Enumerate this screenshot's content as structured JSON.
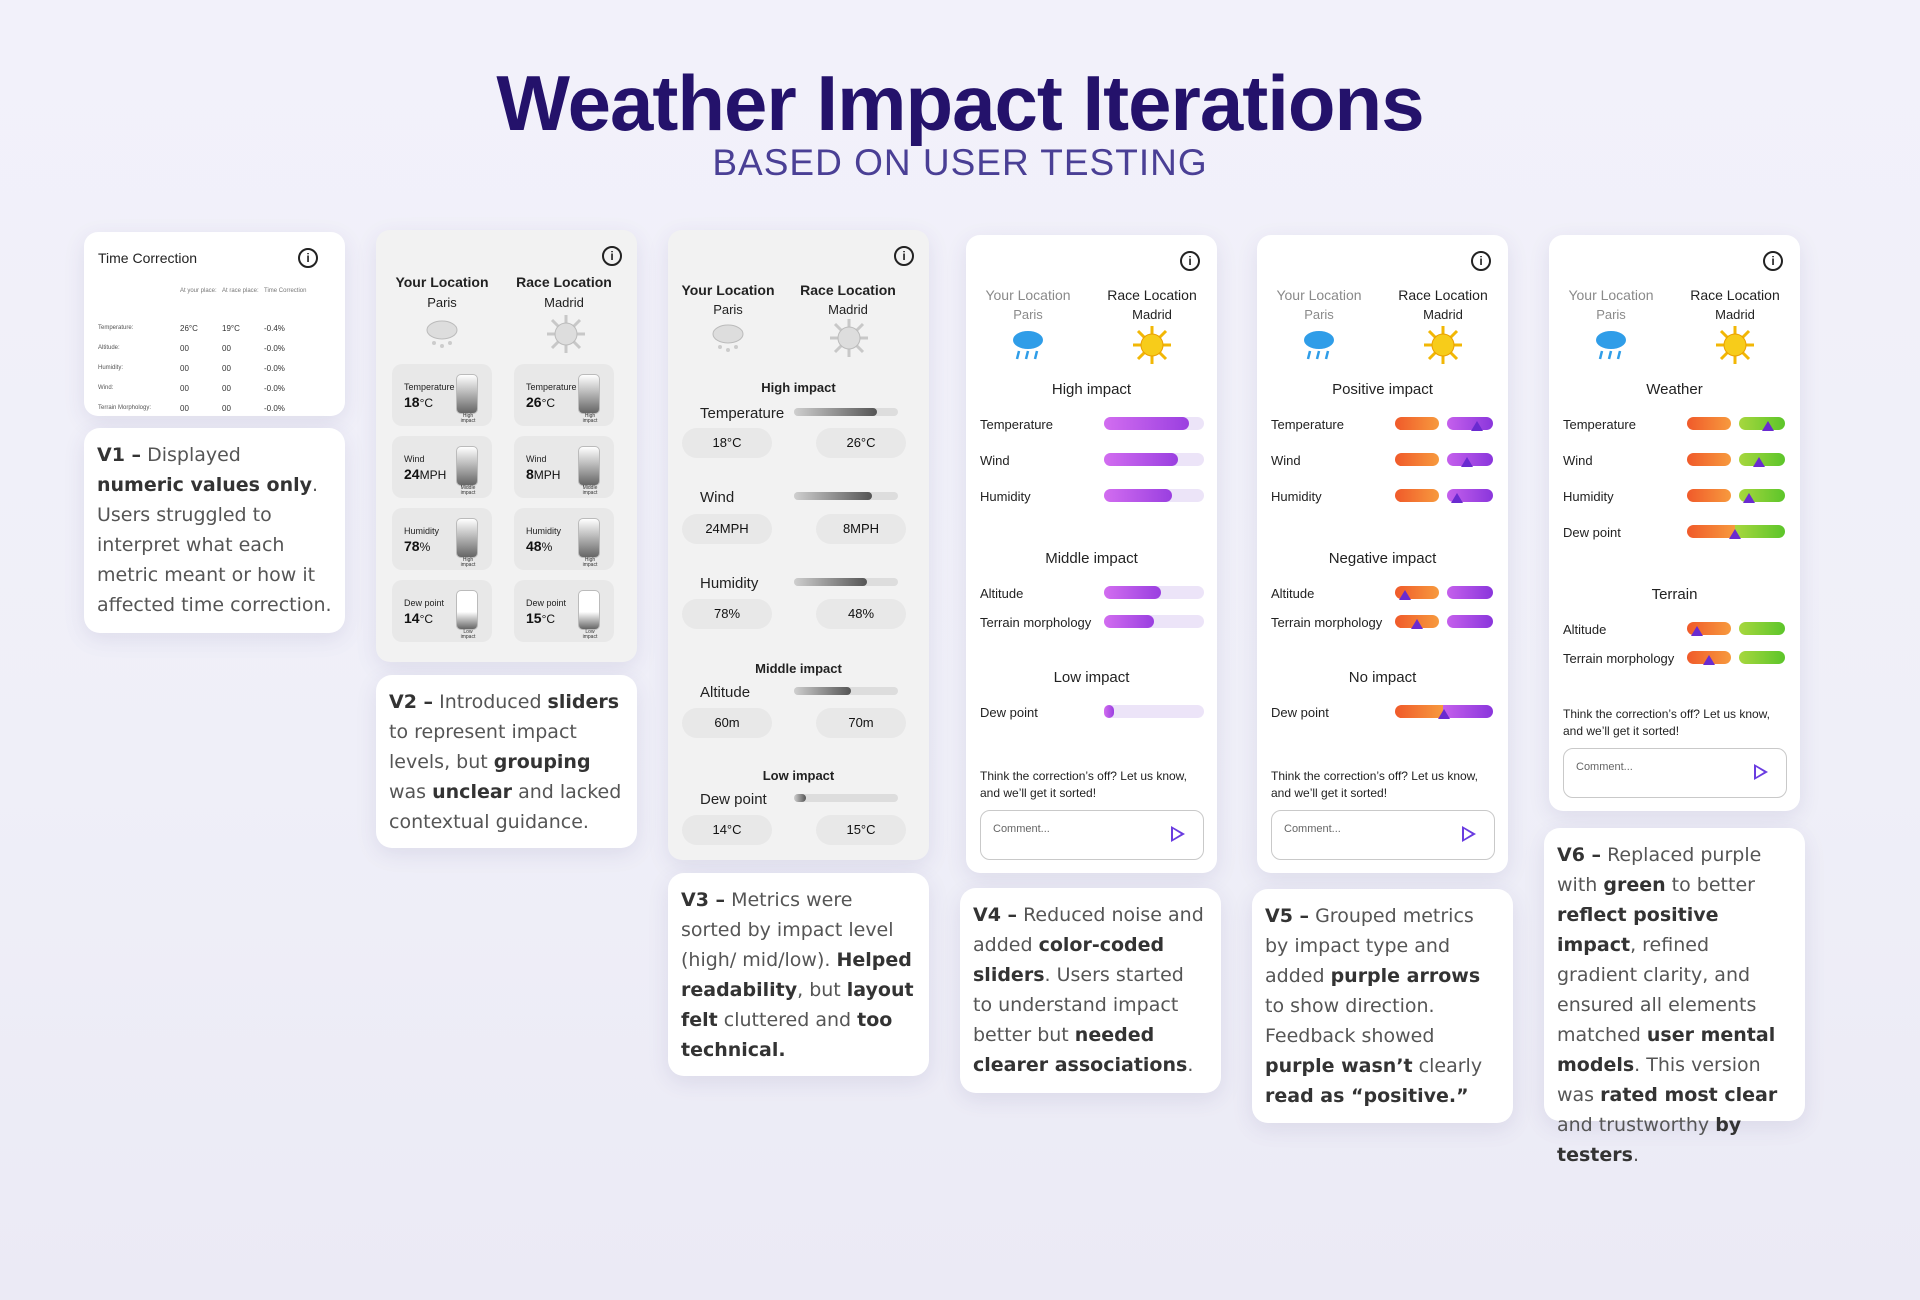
{
  "header": {
    "title": "Weather Impact Iterations",
    "subtitle": "BASED ON USER TESTING"
  },
  "v1": {
    "card_title": "Time Correction",
    "col_headers": [
      "At your place:",
      "At race place:",
      "Time Correction"
    ],
    "rows": [
      {
        "label": "Temperature:",
        "your": "26°C",
        "race": "19°C",
        "corr": "-0.4%"
      },
      {
        "label": "Altitude:",
        "your": "00",
        "race": "00",
        "corr": "-0.0%"
      },
      {
        "label": "Humidity:",
        "your": "00",
        "race": "00",
        "corr": "-0.0%"
      },
      {
        "label": "Wind:",
        "your": "00",
        "race": "00",
        "corr": "-0.0%"
      },
      {
        "label": "Terrain Morphology:",
        "your": "00",
        "race": "00",
        "corr": "-0.0%"
      }
    ],
    "desc_parts": [
      "V1 –",
      " Displayed ",
      "numeric values only",
      ". Users struggled to interpret what each metric meant or how it affected time correction."
    ]
  },
  "locations": {
    "your_label": "Your Location",
    "your_city": "Paris",
    "race_label": "Race Location",
    "race_city": "Madrid"
  },
  "v2": {
    "tiles": [
      {
        "label": "Temperature",
        "value": "18",
        "unit": "°C",
        "impact": "High impact"
      },
      {
        "label": "Temperature",
        "value": "26",
        "unit": "°C",
        "impact": "High impact"
      },
      {
        "label": "Wind",
        "value": "24",
        "unit": "MPH",
        "impact": "Middle impact"
      },
      {
        "label": "Wind",
        "value": "8",
        "unit": "MPH",
        "impact": "Middle impact"
      },
      {
        "label": "Humidity",
        "value": "78",
        "unit": "%",
        "impact": "High impact"
      },
      {
        "label": "Humidity",
        "value": "48",
        "unit": "%",
        "impact": "High impact"
      },
      {
        "label": "Dew point",
        "value": "14",
        "unit": "°C",
        "impact": "Low impact"
      },
      {
        "label": "Dew point",
        "value": "15",
        "unit": "°C",
        "impact": "Low impact"
      }
    ],
    "desc_parts": [
      "V2 –",
      " Introduced ",
      "sliders",
      " to represent impact levels, but ",
      "grouping",
      " was ",
      "unclear",
      " and lacked contextual guidance."
    ]
  },
  "v3": {
    "high": "High impact",
    "middle": "Middle impact",
    "low": "Low impact",
    "metrics": [
      {
        "label": "Temperature",
        "your": "18°C",
        "race": "26°C",
        "level": 0.8
      },
      {
        "label": "Wind",
        "your": "24MPH",
        "race": "8MPH",
        "level": 0.75
      },
      {
        "label": "Humidity",
        "your": "78%",
        "race": "48%",
        "level": 0.7
      },
      {
        "label": "Altitude",
        "your": "60m",
        "race": "70m",
        "level": 0.55
      },
      {
        "label": "Dew point",
        "your": "14°C",
        "race": "15°C",
        "level": 0.12
      }
    ],
    "desc_parts": [
      "V3 –",
      " Metrics were sorted by impact level (high/ mid/low). ",
      "Helped readability",
      ", but ",
      "layout felt",
      " cluttered and ",
      "too technical."
    ]
  },
  "v4": {
    "high": "High impact",
    "middle": "Middle impact",
    "low": "Low impact",
    "high_items": [
      {
        "label": "Temperature",
        "level": 0.85
      },
      {
        "label": "Wind",
        "level": 0.74
      },
      {
        "label": "Humidity",
        "level": 0.68
      }
    ],
    "middle_items": [
      {
        "label": "Altitude",
        "level": 0.57
      },
      {
        "label": "Terrain morphology",
        "level": 0.5
      }
    ],
    "low_items": [
      {
        "label": "Dew point",
        "level": 0.1
      }
    ],
    "desc_parts": [
      "V4 –",
      " Reduced noise and added ",
      "color-coded sliders",
      ". Users started to understand impact better but ",
      "needed clearer associations",
      "."
    ]
  },
  "v5": {
    "positive": "Positive impact",
    "negative": "Negative impact",
    "none": "No impact",
    "positive_items": [
      "Temperature",
      "Wind",
      "Humidity"
    ],
    "negative_items": [
      "Altitude",
      "Terrain morphology"
    ],
    "none_items": [
      "Dew point"
    ],
    "desc_parts": [
      "V5 –",
      " Grouped metrics by impact type and added ",
      "purple arrows",
      " to show direction. Feedback showed ",
      "purple wasn’t",
      " clearly ",
      "read as “positive.”"
    ]
  },
  "v6": {
    "weather": "Weather",
    "terrain": "Terrain",
    "weather_items": [
      "Temperature",
      "Wind",
      "Humidity",
      "Dew point"
    ],
    "terrain_items": [
      "Altitude",
      "Terrain morphology"
    ],
    "desc_parts": [
      "V6 –",
      " Replaced purple with ",
      "green",
      " to better ",
      "reflect positive impact",
      ", refined gradient clarity, and ensured all elements matched ",
      "user mental models",
      ". This version was ",
      "rated most clear",
      " and trustworthy ",
      "by testers",
      "."
    ]
  },
  "feedback": {
    "prompt": "Think the correction’s off? Let us know, and we’ll get it sorted!",
    "placeholder": "Comment..."
  },
  "colors": {
    "title": "#24126b",
    "subtitle": "#4a3f95",
    "purple": "#9a3fe0",
    "orange": "#f05a2a",
    "green": "#5cc52a",
    "arrow": "#6a2bd0"
  }
}
